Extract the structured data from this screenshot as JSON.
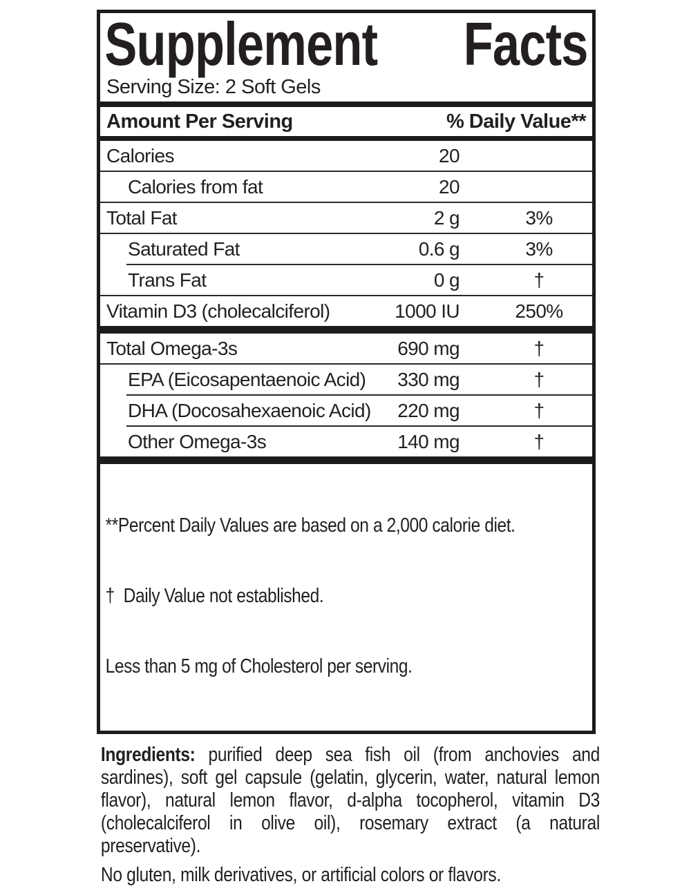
{
  "panel": {
    "title": {
      "first": "Supplement",
      "second": "Facts"
    },
    "serving_size": "Serving Size: 2 Soft Gels",
    "header": {
      "amount": "Amount Per Serving",
      "daily_value": "% Daily Value**"
    },
    "rows": [
      {
        "name": "Calories",
        "amount": "20",
        "dv": "",
        "indent": false,
        "divider": "none"
      },
      {
        "name": "Calories from fat",
        "amount": "20",
        "dv": "",
        "indent": true,
        "divider": "full"
      },
      {
        "name": "Total Fat",
        "amount": "2 g",
        "dv": "3%",
        "indent": false,
        "divider": "full"
      },
      {
        "name": "Saturated Fat",
        "amount": "0.6 g",
        "dv": "3%",
        "indent": true,
        "divider": "full"
      },
      {
        "name": "Trans Fat",
        "amount": "0 g",
        "dv": "†",
        "indent": true,
        "divider": "indent"
      },
      {
        "name": "Vitamin D3 (cholecalciferol)",
        "amount": "1000 IU",
        "dv": "250%",
        "indent": false,
        "divider": "full"
      }
    ],
    "omega_rows": [
      {
        "name": "Total Omega-3s",
        "amount": "690 mg",
        "dv": "†",
        "indent": false,
        "divider": "none"
      },
      {
        "name": "EPA (Eicosapentaenoic Acid)",
        "amount": "330 mg",
        "dv": "†",
        "indent": true,
        "divider": "full"
      },
      {
        "name": "DHA (Docosahexaenoic Acid)",
        "amount": "220 mg",
        "dv": "†",
        "indent": true,
        "divider": "indent"
      },
      {
        "name": "Other Omega-3s",
        "amount": "140 mg",
        "dv": "†",
        "indent": true,
        "divider": "indent"
      }
    ],
    "footnotes": [
      "**Percent Daily Values are based on a 2,000 calorie diet.",
      "†  Daily Value not established.",
      "Less than 5 mg of Cholesterol per serving."
    ]
  },
  "ingredients": {
    "label": "Ingredients:",
    "text": "purified deep sea fish oil (from anchovies and sardines), soft gel capsule (gelatin, glycerin, water, natural lemon flavor), natural lemon flavor, d-alpha tocopherol, vitamin D3 (cholecalciferol in olive oil), rosemary extract (a natural preservative)."
  },
  "allergen_note": "No gluten, milk derivatives, or artificial colors or flavors.",
  "colors": {
    "text": "#231f20",
    "background": "#ffffff",
    "border": "#1c1a1b"
  }
}
